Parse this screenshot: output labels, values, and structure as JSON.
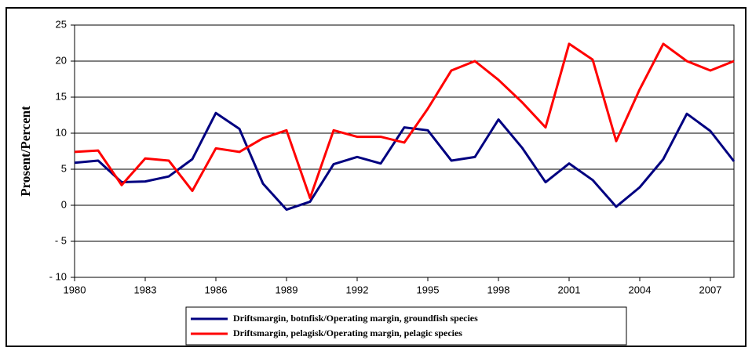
{
  "chart_data": {
    "type": "line",
    "y_label": "Prosent/Percent",
    "x": [
      1980,
      1981,
      1982,
      1983,
      1984,
      1985,
      1986,
      1987,
      1988,
      1989,
      1990,
      1991,
      1992,
      1993,
      1994,
      1995,
      1996,
      1997,
      1998,
      1999,
      2000,
      2001,
      2002,
      2003,
      2004,
      2005,
      2006,
      2007,
      2008
    ],
    "series": [
      {
        "name": "Driftsmargin, botnfisk/Operating margin, groundfish species",
        "color": "#000080",
        "values": [
          5.9,
          6.2,
          3.2,
          3.3,
          4.0,
          6.4,
          12.8,
          10.6,
          3.0,
          -0.6,
          0.5,
          5.7,
          6.7,
          5.8,
          10.8,
          10.4,
          6.2,
          6.7,
          11.9,
          8.0,
          3.2,
          5.8,
          3.5,
          -0.2,
          2.5,
          6.4,
          12.7,
          10.3,
          6.1
        ]
      },
      {
        "name": "Driftsmargin, pelagisk/Operating margin, pelagic species",
        "color": "#ff0000",
        "values": [
          7.4,
          7.6,
          2.8,
          6.5,
          6.2,
          2.0,
          7.9,
          7.4,
          9.3,
          10.4,
          1.0,
          10.4,
          9.5,
          9.5,
          8.7,
          13.4,
          18.7,
          20.0,
          17.4,
          14.3,
          10.8,
          22.4,
          20.2,
          8.9,
          16.1,
          22.4,
          20.0,
          18.7,
          20.0
        ]
      }
    ],
    "xlim": [
      1980,
      2008
    ],
    "xticks": [
      1980,
      1983,
      1986,
      1989,
      1992,
      1995,
      1998,
      2001,
      2004,
      2007
    ],
    "ylim": [
      -10,
      25
    ],
    "yticks": [
      {
        "value": -10,
        "label": "- 10"
      },
      {
        "value": -5,
        "label": "- 5"
      },
      0,
      5,
      10,
      15,
      20,
      25
    ],
    "grid": true
  }
}
